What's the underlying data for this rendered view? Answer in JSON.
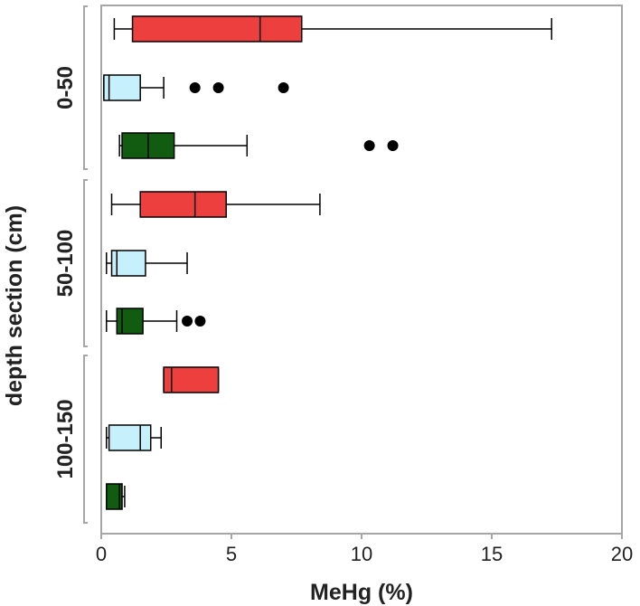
{
  "chart_data": {
    "type": "boxplot",
    "orientation": "horizontal",
    "xlabel": "MeHg (%)",
    "ylabel": "depth section (cm)",
    "xlim": [
      0,
      20
    ],
    "xticks": [
      "0",
      "5",
      "10",
      "15",
      "20"
    ],
    "groups": [
      {
        "label": "0-50",
        "boxes": [
          {
            "series": "red",
            "whisker_low": 0.5,
            "q1": 1.2,
            "median": 6.1,
            "q3": 7.7,
            "whisker_high": 17.3,
            "outliers": []
          },
          {
            "series": "light-blue",
            "whisker_low": 0.1,
            "q1": 0.1,
            "median": 0.3,
            "q3": 1.5,
            "whisker_high": 2.4,
            "outliers": [
              3.6,
              4.5,
              7.0
            ]
          },
          {
            "series": "green",
            "whisker_low": 0.7,
            "q1": 0.8,
            "median": 1.8,
            "q3": 2.8,
            "whisker_high": 5.6,
            "outliers": [
              10.3,
              11.2
            ]
          }
        ]
      },
      {
        "label": "50-100",
        "boxes": [
          {
            "series": "red",
            "whisker_low": 0.4,
            "q1": 1.5,
            "median": 3.6,
            "q3": 4.8,
            "whisker_high": 8.4,
            "outliers": []
          },
          {
            "series": "light-blue",
            "whisker_low": 0.2,
            "q1": 0.4,
            "median": 0.6,
            "q3": 1.7,
            "whisker_high": 3.3,
            "outliers": []
          },
          {
            "series": "green",
            "whisker_low": 0.2,
            "q1": 0.6,
            "median": 0.8,
            "q3": 1.6,
            "whisker_high": 2.9,
            "outliers": [
              3.3,
              3.8
            ]
          }
        ]
      },
      {
        "label": "100-150",
        "boxes": [
          {
            "series": "red",
            "whisker_low": 2.4,
            "q1": 2.4,
            "median": 2.7,
            "q3": 4.5,
            "whisker_high": 4.5,
            "outliers": []
          },
          {
            "series": "light-blue",
            "whisker_low": 0.2,
            "q1": 0.3,
            "median": 1.5,
            "q3": 1.9,
            "whisker_high": 2.3,
            "outliers": []
          },
          {
            "series": "green",
            "whisker_low": 0.2,
            "q1": 0.2,
            "median": 0.7,
            "q3": 0.8,
            "whisker_high": 0.9,
            "outliers": []
          }
        ]
      }
    ],
    "series_colors": {
      "red": "#ee3f3f",
      "light-blue": "#c6f1fc",
      "green": "#125c12"
    }
  }
}
